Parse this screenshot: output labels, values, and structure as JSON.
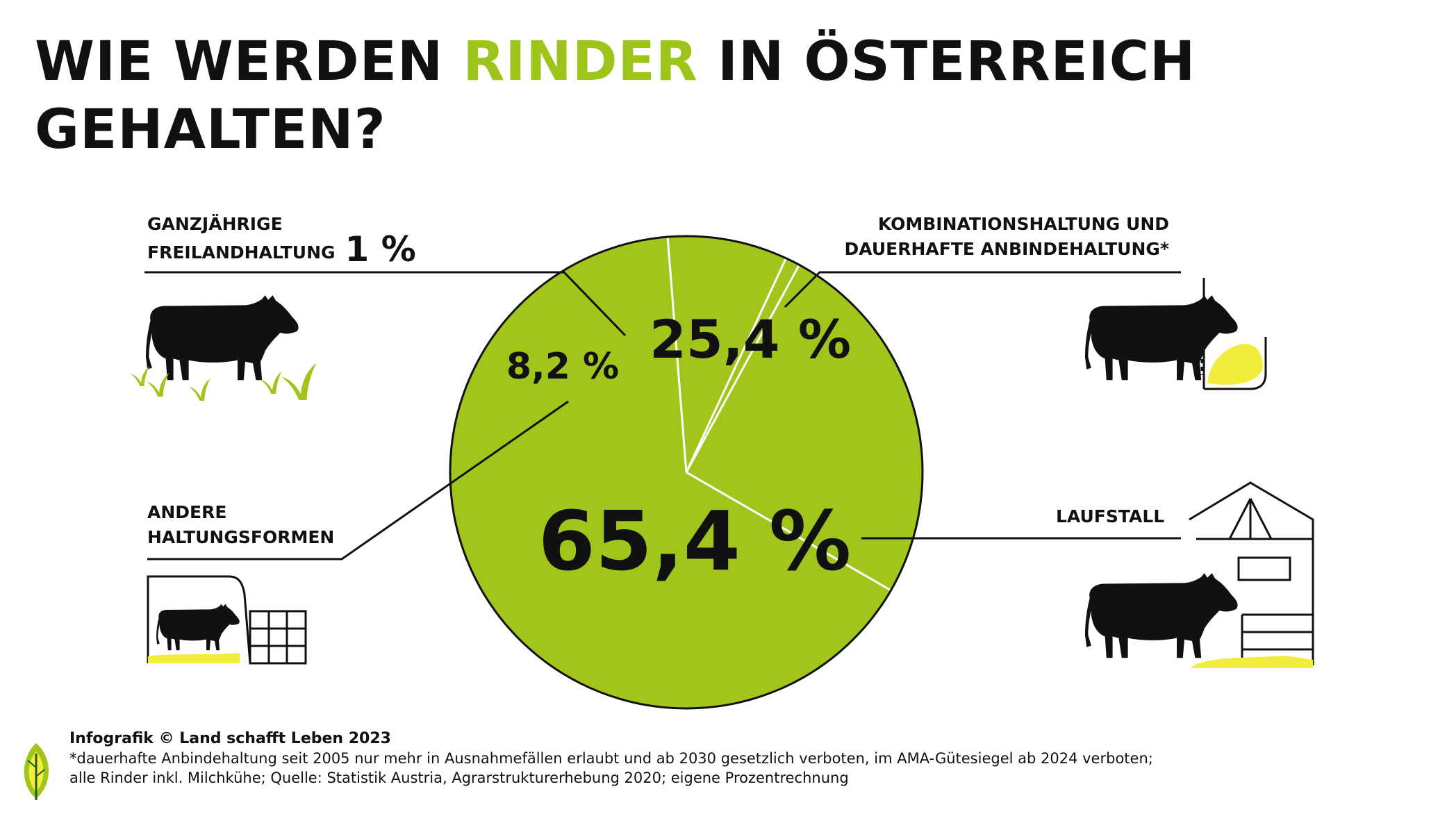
{
  "title": {
    "part1": "WIE WERDEN ",
    "accent": "RINDER",
    "part2": " IN ÖSTERREICH",
    "line2": "GEHALTEN?"
  },
  "chart_data": {
    "type": "pie",
    "slices": [
      {
        "name": "LAUFSTALL",
        "value": 65.4,
        "label": "65,4 %"
      },
      {
        "name": "ANDERE HALTUNGSFORMEN",
        "value": 8.2,
        "label": "8,2 %"
      },
      {
        "name": "GANZJÄHRIGE FREILANDHALTUNG",
        "value": 1,
        "label": "1 %"
      },
      {
        "name": "KOMBINATIONSHALTUNG UND DAUERHAFTE ANBINDEHALTUNG*",
        "value": 25.4,
        "label": "25,4 %"
      }
    ],
    "colors": {
      "slice": "#a2c51c",
      "border": "#111111",
      "separator": "#ffffff"
    }
  },
  "labels": {
    "freiland_line1": "GANZJÄHRIGE",
    "freiland_line2": "FREILANDHALTUNG",
    "freiland_pct": "1 %",
    "kombi_line1": "KOMBINATIONSHALTUNG UND",
    "kombi_line2": "DAUERHAFTE ANBINDEHALTUNG*",
    "andere_line1": "ANDERE",
    "andere_line2": "HALTUNGSFORMEN",
    "laufstall": "LAUFSTALL"
  },
  "footer": {
    "credit": "Infografik © Land schafft Leben 2023",
    "note1": "*dauerhafte Anbindehaltung seit 2005 nur mehr in Ausnahmefällen erlaubt und ab 2030 gesetzlich verboten, im AMA-Gütesiegel ab 2024 verboten;",
    "note2": "alle Rinder inkl. Milchkühe; Quelle: Statistik Austria, Agrarstrukturerhebung 2020; eigene Prozentrechnung"
  },
  "icons": [
    "cow-grazing-icon",
    "cow-tethered-icon",
    "cow-calf-box-icon",
    "cow-barn-icon",
    "land-schafft-leben-logo-icon"
  ],
  "colors": {
    "accent": "#9dc41a",
    "straw": "#f2ec3c",
    "text": "#111111"
  }
}
